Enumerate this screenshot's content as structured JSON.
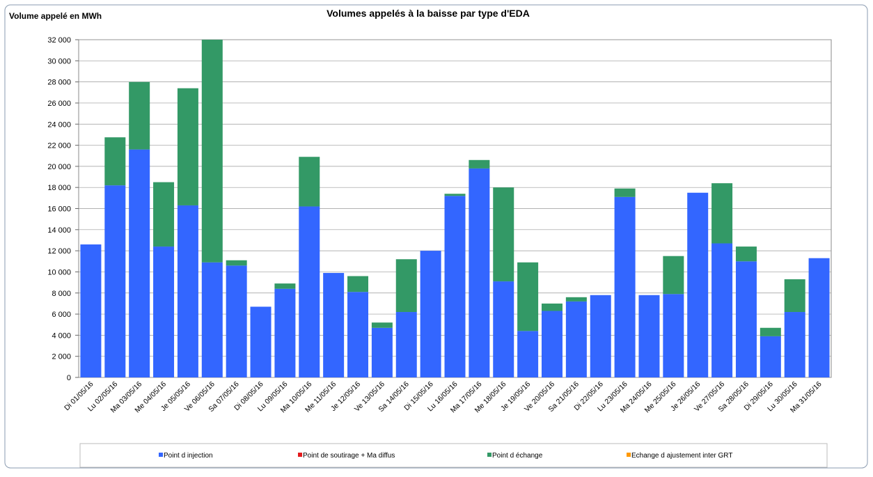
{
  "chart_data": {
    "type": "stacked_bar",
    "title": "Volumes appelés à la baisse par type d'EDA",
    "y_label": "Volume appelé en MWh",
    "categories": [
      "Di 01/05/16",
      "Lu 02/05/16",
      "Ma 03/05/16",
      "Me 04/05/16",
      "Je 05/05/16",
      "Ve 06/05/16",
      "Sa 07/05/16",
      "Di 08/05/16",
      "Lu 09/05/16",
      "Ma 10/05/16",
      "Me 11/05/16",
      "Je 12/05/16",
      "Ve 13/05/16",
      "Sa 14/05/16",
      "Di 15/05/16",
      "Lu 16/05/16",
      "Ma 17/05/16",
      "Me 18/05/16",
      "Je 19/05/16",
      "Ve 20/05/16",
      "Sa 21/05/16",
      "Di 22/05/16",
      "Lu 23/05/16",
      "Ma 24/05/16",
      "Me 25/05/16",
      "Je 26/05/16",
      "Ve 27/05/16",
      "Sa 28/05/16",
      "Di 29/05/16",
      "Lu 30/05/16",
      "Ma 31/05/16"
    ],
    "series": [
      {
        "name": "Point d injection",
        "color": "#3366ff",
        "values": [
          12600,
          18200,
          21600,
          12400,
          16300,
          10900,
          10600,
          6700,
          8400,
          16200,
          9900,
          8100,
          4700,
          6200,
          12000,
          17200,
          19800,
          9100,
          4400,
          6300,
          7200,
          7800,
          17100,
          7800,
          7900,
          17500,
          12700,
          11000,
          3900,
          6200,
          11300
        ]
      },
      {
        "name": "Point de soutirage + Ma diffus",
        "color": "#e31a1c",
        "values": [
          0,
          0,
          0,
          0,
          0,
          0,
          0,
          0,
          0,
          0,
          0,
          0,
          0,
          0,
          0,
          0,
          0,
          0,
          0,
          0,
          0,
          0,
          0,
          0,
          0,
          0,
          0,
          0,
          0,
          0,
          0
        ]
      },
      {
        "name": "Point d échange",
        "color": "#339966",
        "values": [
          0,
          4550,
          6400,
          6100,
          11100,
          21100,
          500,
          0,
          500,
          4700,
          0,
          1500,
          500,
          5000,
          0,
          200,
          800,
          8900,
          6500,
          700,
          400,
          0,
          800,
          0,
          3600,
          0,
          5700,
          1400,
          800,
          3100,
          0
        ]
      },
      {
        "name": "Echange d ajustement inter GRT",
        "color": "#ff9900",
        "values": [
          0,
          0,
          0,
          0,
          0,
          0,
          0,
          0,
          0,
          0,
          0,
          0,
          0,
          0,
          0,
          0,
          0,
          0,
          0,
          0,
          0,
          0,
          0,
          0,
          0,
          0,
          0,
          0,
          0,
          0,
          0
        ]
      }
    ],
    "ylim": [
      0,
      32000
    ],
    "yticks": [
      0,
      {
        "value": 2000,
        "label": "2 000"
      },
      {
        "value": 4000,
        "label": "4 000"
      },
      {
        "value": 6000,
        "label": "6 000"
      },
      {
        "value": 8000,
        "label": "8 000"
      },
      {
        "value": 10000,
        "label": "10 000"
      },
      {
        "value": 12000,
        "label": "12 000"
      },
      {
        "value": 14000,
        "label": "14 000"
      },
      {
        "value": 16000,
        "label": "16 000"
      },
      {
        "value": 18000,
        "label": "18 000"
      },
      {
        "value": 20000,
        "label": "20 000"
      },
      {
        "value": 22000,
        "label": "22 000"
      },
      {
        "value": 24000,
        "label": "24 000"
      },
      {
        "value": 26000,
        "label": "26 000"
      },
      {
        "value": 28000,
        "label": "28 000"
      },
      {
        "value": 30000,
        "label": "30 000"
      },
      {
        "value": 32000,
        "label": "32 000"
      }
    ],
    "grid": true,
    "legend": "bottom"
  }
}
